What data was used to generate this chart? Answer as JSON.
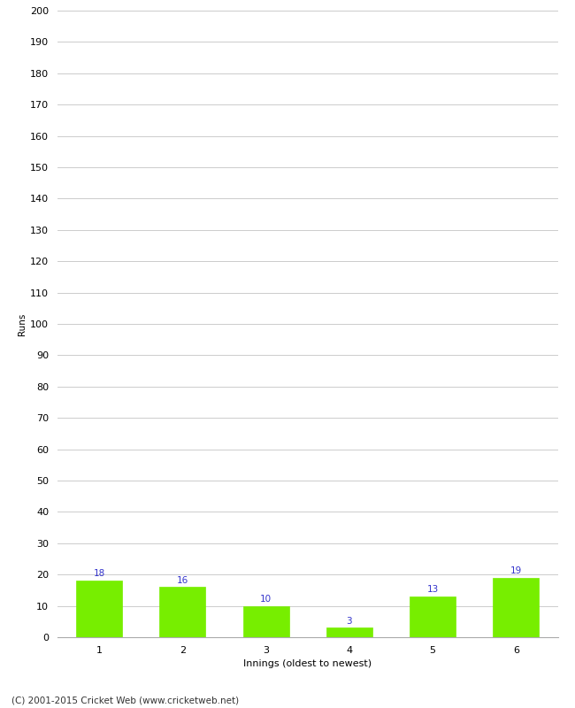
{
  "categories": [
    "1",
    "2",
    "3",
    "4",
    "5",
    "6"
  ],
  "values": [
    18,
    16,
    10,
    3,
    13,
    19
  ],
  "bar_color": "#77ee00",
  "bar_edge_color": "#77ee00",
  "label_color": "#3333cc",
  "ylabel": "Runs",
  "xlabel": "Innings (oldest to newest)",
  "ylim": [
    0,
    200
  ],
  "ytick_step": 10,
  "background_color": "#ffffff",
  "grid_color": "#cccccc",
  "footer": "(C) 2001-2015 Cricket Web (www.cricketweb.net)",
  "label_fontsize": 7.5,
  "axis_fontsize": 8,
  "ylabel_fontsize": 7.5,
  "xlabel_fontsize": 8,
  "footer_fontsize": 7.5,
  "bar_width": 0.55
}
